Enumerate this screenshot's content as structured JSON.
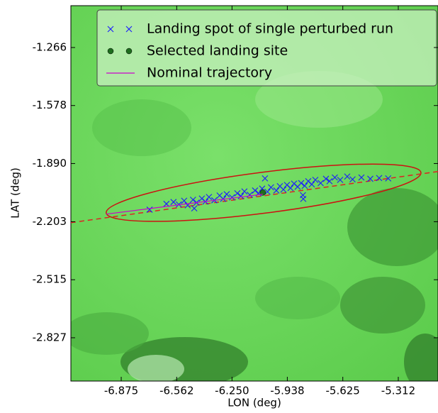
{
  "chart_data": {
    "type": "scatter",
    "xlabel": "LON (deg)",
    "ylabel": "LAT (deg)",
    "xlim": [
      -7.159,
      -5.088
    ],
    "ylim": [
      -3.06,
      -1.041
    ],
    "xticks": [
      -6.875,
      -6.562,
      {
        "value": -6.25,
        "label": "-6.250"
      },
      -5.938,
      -5.625,
      -5.312
    ],
    "yticks": [
      -1.266,
      -1.578,
      {
        "value": -1.89,
        "label": "-1.890"
      },
      -2.203,
      -2.515,
      -2.827
    ],
    "legend": "upper right",
    "series": [
      {
        "name": "Landing spot of single perturbed run",
        "color": "#1a1aff",
        "marker": "x",
        "x": [
          -6.715,
          -6.62,
          -6.58,
          -6.55,
          -6.52,
          -6.5,
          -6.47,
          -6.45,
          -6.42,
          -6.4,
          -6.38,
          -6.35,
          -6.32,
          -6.3,
          -6.28,
          -6.25,
          -6.22,
          -6.2,
          -6.18,
          -6.15,
          -6.12,
          -6.1,
          -6.08,
          -6.05,
          -6.03,
          -6.0,
          -5.98,
          -5.96,
          -5.94,
          -5.92,
          -5.9,
          -5.88,
          -5.86,
          -5.84,
          -5.82,
          -5.8,
          -5.78,
          -5.75,
          -5.72,
          -5.7,
          -5.67,
          -5.64,
          -5.6,
          -5.57,
          -5.52,
          -5.47,
          -5.42,
          -5.369,
          -5.848,
          -5.85,
          -6.463,
          -6.064
        ],
        "y": [
          -2.138,
          -2.107,
          -2.097,
          -2.11,
          -2.09,
          -2.115,
          -2.085,
          -2.1,
          -2.078,
          -2.095,
          -2.07,
          -2.088,
          -2.062,
          -2.08,
          -2.055,
          -2.072,
          -2.05,
          -2.065,
          -2.04,
          -2.058,
          -2.035,
          -2.05,
          -2.025,
          -2.042,
          -2.018,
          -2.035,
          -2.012,
          -2.03,
          -2.005,
          -2.022,
          -1.998,
          -2.015,
          -1.995,
          -2.01,
          -1.985,
          -2.002,
          -1.978,
          -1.995,
          -1.972,
          -1.985,
          -1.965,
          -1.978,
          -1.96,
          -1.975,
          -1.965,
          -1.972,
          -1.968,
          -1.97,
          -2.08,
          -2.06,
          -2.131,
          -1.97
        ]
      },
      {
        "name": "Selected landing site",
        "color": "#1e6e1e",
        "marker": "o",
        "x": [
          -6.076
        ],
        "y": [
          -2.046
        ]
      },
      {
        "name": "Nominal trajectory",
        "color": "#cc00cc",
        "marker": "line",
        "x": [
          -6.959,
          -6.076
        ],
        "y": [
          -2.162,
          -2.055
        ]
      }
    ],
    "extension": {
      "color": "#dd2222",
      "x": [
        -7.159,
        -5.088
      ],
      "y": [
        -2.208,
        -1.933
      ]
    },
    "ellipse": {
      "color": "#cc1111",
      "center": [
        -6.072,
        -2.047
      ],
      "width": 1.79,
      "height": 0.22,
      "angle": 7.3
    }
  }
}
